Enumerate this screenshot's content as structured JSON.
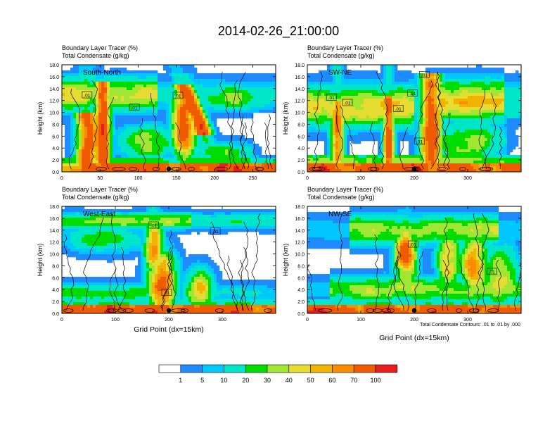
{
  "title": "2014-02-26_21:00:00",
  "panel_label_left": "Boundary Layer Tracer   (%)",
  "panel_label_left2": "Total Condensate   (g/kg)",
  "ylabel": "Height (km)",
  "xlabel": "Grid Point (dx=15km)",
  "contour_note": "Total Condensate Contours: .01 to .01 by .000",
  "chart_data": [
    {
      "type": "heatmap",
      "title": "South-North",
      "ylabel": "Height (km)",
      "ylim": [
        0,
        18
      ],
      "yticks": [
        "0.0",
        "2.0",
        "4.0",
        "6.0",
        "8.0",
        "10.0",
        "12.0",
        "14.0",
        "16.0",
        "18.0"
      ],
      "xlim": [
        0,
        280
      ],
      "xticks": [
        0,
        50,
        100,
        150,
        200,
        250
      ],
      "marker_x": 140,
      "contour_labels": [
        {
          "text": ".01",
          "x": 33,
          "y": 12.9
        },
        {
          "text": ".01",
          "x": 95,
          "y": 10.8
        },
        {
          "text": ".01",
          "x": 152,
          "y": 12.8
        }
      ]
    },
    {
      "type": "heatmap",
      "title": "SW-NE",
      "ylabel": "Height (km)",
      "ylim": [
        0,
        18
      ],
      "yticks": [
        "0.0",
        "2.0",
        "4.0",
        "6.0",
        "8.0",
        "10.0",
        "12.0",
        "14.0",
        "16.0",
        "18.0"
      ],
      "xlim": [
        0,
        400
      ],
      "xticks": [
        0,
        100,
        200,
        300
      ],
      "marker_x": 200,
      "contour_labels": [
        {
          "text": ".01",
          "x": 45,
          "y": 12.5
        },
        {
          "text": ".01",
          "x": 75,
          "y": 11.6
        },
        {
          "text": ".01",
          "x": 170,
          "y": 10.6
        },
        {
          "text": ".01",
          "x": 197,
          "y": 13.2
        },
        {
          "text": ".01",
          "x": 219,
          "y": 16.3
        },
        {
          "text": ".01",
          "x": 210,
          "y": 5.1
        }
      ]
    },
    {
      "type": "heatmap",
      "title": "West-East",
      "ylabel": "Height (km)",
      "ylim": [
        0,
        18
      ],
      "yticks": [
        "0.0",
        "2.0",
        "4.0",
        "6.0",
        "8.0",
        "10.0",
        "12.0",
        "14.0",
        "16.0",
        "18.0"
      ],
      "xlim": [
        0,
        400
      ],
      "xticks": [
        0,
        100,
        200,
        300
      ],
      "marker_x": 200,
      "contour_labels": [
        {
          "text": ".01",
          "x": 172,
          "y": 14.8
        },
        {
          "text": ".01",
          "x": 287,
          "y": 13.8
        },
        {
          "text": ".01",
          "x": 196,
          "y": 3.5
        }
      ]
    },
    {
      "type": "heatmap",
      "title": "NW-SE",
      "ylabel": "Height (km)",
      "ylim": [
        0,
        18
      ],
      "yticks": [
        "0.0",
        "2.0",
        "4.0",
        "6.0",
        "8.0",
        "10.0",
        "12.0",
        "14.0",
        "16.0",
        "18.0"
      ],
      "xlim": [
        0,
        400
      ],
      "xticks": [
        0,
        100,
        200,
        300
      ],
      "marker_x": 200,
      "contour_labels": [
        {
          "text": ".01",
          "x": 198,
          "y": 11.6
        },
        {
          "text": ".01",
          "x": 345,
          "y": 7.0
        }
      ]
    }
  ],
  "colorbar": {
    "labels": [
      "1",
      "5",
      "10",
      "20",
      "30",
      "40",
      "50",
      "60",
      "70",
      "100"
    ],
    "colors": [
      "#ffffff",
      "#1e8cff",
      "#00c8ff",
      "#00e6c8",
      "#00dc00",
      "#a0e632",
      "#e6dc32",
      "#f0b400",
      "#fa8c00",
      "#f05a00",
      "#e61e1e"
    ]
  }
}
